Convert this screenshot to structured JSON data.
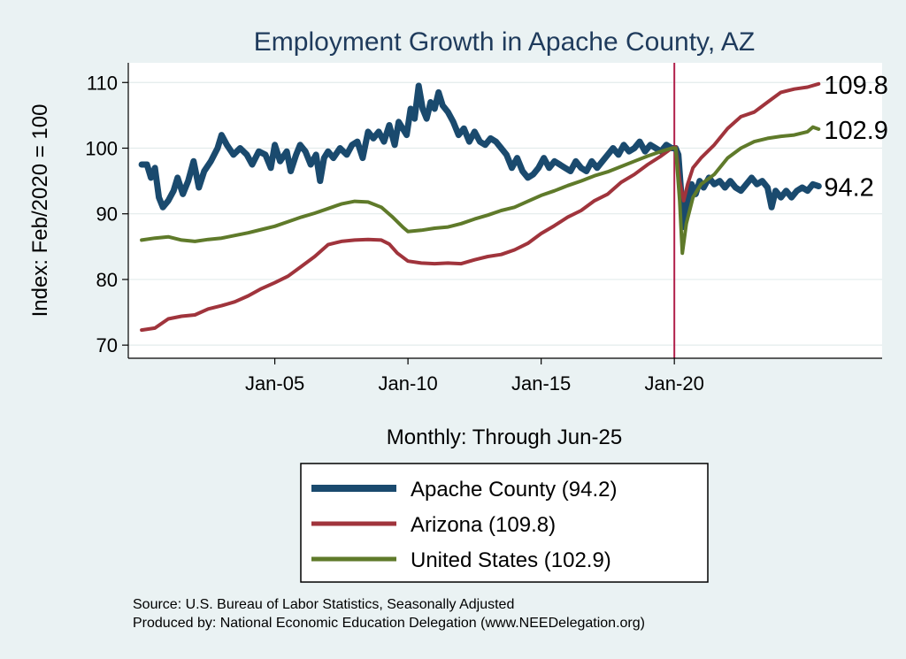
{
  "chart_data": {
    "type": "line",
    "title": "Employment Growth in Apache  County, AZ",
    "ylabel": "Index: Feb/2020 = 100",
    "xlabel": "Monthly: Through Jun-25",
    "ylim": [
      68,
      113
    ],
    "yticks": [
      70,
      80,
      90,
      100,
      110
    ],
    "xticks": [
      {
        "label": "Jan-05",
        "x": 2005.0
      },
      {
        "label": "Jan-10",
        "x": 2010.0
      },
      {
        "label": "Jan-15",
        "x": 2015.0
      },
      {
        "label": "Jan-20",
        "x": 2020.0
      }
    ],
    "xlim": [
      1999.5,
      2027.8
    ],
    "vline": {
      "x": 2020.0,
      "color": "#b0204a"
    },
    "grid": true,
    "series": [
      {
        "name": "Apache  County (94.2)",
        "color": "#1a4a6e",
        "width": 7,
        "end_label": "94.2",
        "points": [
          [
            2000.0,
            97.5
          ],
          [
            2000.2,
            97.5
          ],
          [
            2000.35,
            95.5
          ],
          [
            2000.5,
            97.0
          ],
          [
            2000.65,
            92.5
          ],
          [
            2000.8,
            91.0
          ],
          [
            2001.0,
            92.0
          ],
          [
            2001.2,
            93.5
          ],
          [
            2001.35,
            95.5
          ],
          [
            2001.55,
            93.0
          ],
          [
            2001.75,
            95.0
          ],
          [
            2001.95,
            98.0
          ],
          [
            2002.15,
            94.0
          ],
          [
            2002.35,
            96.5
          ],
          [
            2002.6,
            98.0
          ],
          [
            2002.85,
            100.0
          ],
          [
            2003.0,
            102.0
          ],
          [
            2003.2,
            100.5
          ],
          [
            2003.45,
            99.0
          ],
          [
            2003.7,
            100.0
          ],
          [
            2003.95,
            99.0
          ],
          [
            2004.15,
            97.5
          ],
          [
            2004.4,
            99.5
          ],
          [
            2004.65,
            99.0
          ],
          [
            2004.85,
            97.0
          ],
          [
            2005.0,
            100.5
          ],
          [
            2005.2,
            98.0
          ],
          [
            2005.45,
            99.5
          ],
          [
            2005.6,
            96.5
          ],
          [
            2005.8,
            99.0
          ],
          [
            2005.95,
            100.5
          ],
          [
            2006.15,
            99.5
          ],
          [
            2006.35,
            97.5
          ],
          [
            2006.55,
            99.0
          ],
          [
            2006.7,
            95.0
          ],
          [
            2006.85,
            98.5
          ],
          [
            2007.0,
            99.5
          ],
          [
            2007.2,
            98.5
          ],
          [
            2007.45,
            100.0
          ],
          [
            2007.7,
            99.0
          ],
          [
            2007.9,
            100.5
          ],
          [
            2008.1,
            101.0
          ],
          [
            2008.3,
            98.5
          ],
          [
            2008.5,
            102.5
          ],
          [
            2008.7,
            101.5
          ],
          [
            2008.9,
            102.5
          ],
          [
            2009.1,
            101.0
          ],
          [
            2009.3,
            103.5
          ],
          [
            2009.5,
            100.5
          ],
          [
            2009.65,
            104.0
          ],
          [
            2009.8,
            103.0
          ],
          [
            2009.95,
            102.0
          ],
          [
            2010.1,
            106.0
          ],
          [
            2010.25,
            104.5
          ],
          [
            2010.4,
            109.5
          ],
          [
            2010.55,
            106.0
          ],
          [
            2010.7,
            104.5
          ],
          [
            2010.85,
            107.0
          ],
          [
            2011.0,
            106.0
          ],
          [
            2011.15,
            108.5
          ],
          [
            2011.3,
            106.5
          ],
          [
            2011.5,
            105.5
          ],
          [
            2011.7,
            104.0
          ],
          [
            2011.9,
            102.0
          ],
          [
            2012.1,
            103.0
          ],
          [
            2012.3,
            101.0
          ],
          [
            2012.5,
            102.5
          ],
          [
            2012.7,
            101.0
          ],
          [
            2012.9,
            100.5
          ],
          [
            2013.1,
            101.5
          ],
          [
            2013.3,
            101.0
          ],
          [
            2013.5,
            100.0
          ],
          [
            2013.7,
            99.0
          ],
          [
            2013.9,
            97.0
          ],
          [
            2014.1,
            98.5
          ],
          [
            2014.3,
            96.5
          ],
          [
            2014.5,
            95.5
          ],
          [
            2014.7,
            96.0
          ],
          [
            2014.9,
            97.0
          ],
          [
            2015.1,
            98.5
          ],
          [
            2015.3,
            97.0
          ],
          [
            2015.5,
            98.0
          ],
          [
            2015.7,
            97.5
          ],
          [
            2015.9,
            97.0
          ],
          [
            2016.1,
            96.5
          ],
          [
            2016.3,
            98.0
          ],
          [
            2016.5,
            97.0
          ],
          [
            2016.7,
            96.5
          ],
          [
            2016.9,
            98.0
          ],
          [
            2017.1,
            97.0
          ],
          [
            2017.3,
            98.0
          ],
          [
            2017.5,
            99.0
          ],
          [
            2017.7,
            100.0
          ],
          [
            2017.9,
            99.0
          ],
          [
            2018.1,
            100.5
          ],
          [
            2018.3,
            99.5
          ],
          [
            2018.5,
            100.0
          ],
          [
            2018.7,
            101.0
          ],
          [
            2018.9,
            99.5
          ],
          [
            2019.1,
            100.5
          ],
          [
            2019.3,
            100.0
          ],
          [
            2019.5,
            99.5
          ],
          [
            2019.7,
            100.5
          ],
          [
            2019.9,
            100.0
          ],
          [
            2020.05,
            100.0
          ],
          [
            2020.15,
            99.0
          ],
          [
            2020.25,
            93.5
          ],
          [
            2020.35,
            88.0
          ],
          [
            2020.5,
            91.5
          ],
          [
            2020.65,
            94.5
          ],
          [
            2020.8,
            93.0
          ],
          [
            2020.95,
            95.0
          ],
          [
            2021.1,
            94.0
          ],
          [
            2021.3,
            95.5
          ],
          [
            2021.5,
            94.5
          ],
          [
            2021.7,
            95.0
          ],
          [
            2021.9,
            94.0
          ],
          [
            2022.1,
            95.0
          ],
          [
            2022.3,
            94.0
          ],
          [
            2022.5,
            93.5
          ],
          [
            2022.7,
            94.5
          ],
          [
            2022.9,
            95.5
          ],
          [
            2023.1,
            94.5
          ],
          [
            2023.3,
            95.0
          ],
          [
            2023.5,
            94.0
          ],
          [
            2023.65,
            91.0
          ],
          [
            2023.8,
            93.5
          ],
          [
            2024.0,
            92.5
          ],
          [
            2024.2,
            93.5
          ],
          [
            2024.4,
            92.5
          ],
          [
            2024.6,
            93.5
          ],
          [
            2024.8,
            94.0
          ],
          [
            2025.0,
            93.5
          ],
          [
            2025.2,
            94.5
          ],
          [
            2025.42,
            94.2
          ]
        ]
      },
      {
        "name": "Arizona (109.8)",
        "color": "#a0343c",
        "width": 4,
        "end_label": "109.8",
        "points": [
          [
            2000.0,
            72.3
          ],
          [
            2000.5,
            72.6
          ],
          [
            2001.0,
            74.0
          ],
          [
            2001.5,
            74.4
          ],
          [
            2002.0,
            74.6
          ],
          [
            2002.5,
            75.5
          ],
          [
            2003.0,
            76.0
          ],
          [
            2003.5,
            76.6
          ],
          [
            2004.0,
            77.5
          ],
          [
            2004.5,
            78.6
          ],
          [
            2005.0,
            79.5
          ],
          [
            2005.5,
            80.5
          ],
          [
            2006.0,
            82.0
          ],
          [
            2006.5,
            83.5
          ],
          [
            2007.0,
            85.3
          ],
          [
            2007.5,
            85.8
          ],
          [
            2008.0,
            86.0
          ],
          [
            2008.5,
            86.1
          ],
          [
            2009.0,
            86.0
          ],
          [
            2009.3,
            85.4
          ],
          [
            2009.6,
            84.0
          ],
          [
            2010.0,
            82.8
          ],
          [
            2010.5,
            82.5
          ],
          [
            2011.0,
            82.4
          ],
          [
            2011.5,
            82.5
          ],
          [
            2012.0,
            82.4
          ],
          [
            2012.5,
            83.0
          ],
          [
            2013.0,
            83.5
          ],
          [
            2013.5,
            83.8
          ],
          [
            2014.0,
            84.5
          ],
          [
            2014.5,
            85.5
          ],
          [
            2015.0,
            87.0
          ],
          [
            2015.5,
            88.2
          ],
          [
            2016.0,
            89.5
          ],
          [
            2016.5,
            90.5
          ],
          [
            2017.0,
            92.0
          ],
          [
            2017.5,
            93.0
          ],
          [
            2018.0,
            94.8
          ],
          [
            2018.5,
            96.0
          ],
          [
            2019.0,
            97.5
          ],
          [
            2019.5,
            98.8
          ],
          [
            2019.9,
            100.0
          ],
          [
            2020.05,
            100.2
          ],
          [
            2020.2,
            95.0
          ],
          [
            2020.35,
            92.0
          ],
          [
            2020.5,
            94.5
          ],
          [
            2020.7,
            97.0
          ],
          [
            2021.0,
            98.5
          ],
          [
            2021.5,
            100.5
          ],
          [
            2022.0,
            103.0
          ],
          [
            2022.5,
            104.8
          ],
          [
            2023.0,
            105.5
          ],
          [
            2023.5,
            107.0
          ],
          [
            2024.0,
            108.5
          ],
          [
            2024.5,
            109.0
          ],
          [
            2025.0,
            109.3
          ],
          [
            2025.42,
            109.8
          ]
        ]
      },
      {
        "name": "United States (102.9)",
        "color": "#5f7a2a",
        "width": 4,
        "end_label": "102.9",
        "points": [
          [
            2000.0,
            86.0
          ],
          [
            2000.5,
            86.3
          ],
          [
            2001.0,
            86.5
          ],
          [
            2001.5,
            86.0
          ],
          [
            2002.0,
            85.8
          ],
          [
            2002.5,
            86.1
          ],
          [
            2003.0,
            86.3
          ],
          [
            2003.5,
            86.7
          ],
          [
            2004.0,
            87.1
          ],
          [
            2004.5,
            87.6
          ],
          [
            2005.0,
            88.1
          ],
          [
            2005.5,
            88.8
          ],
          [
            2006.0,
            89.5
          ],
          [
            2006.5,
            90.1
          ],
          [
            2007.0,
            90.8
          ],
          [
            2007.5,
            91.5
          ],
          [
            2008.0,
            91.9
          ],
          [
            2008.5,
            91.8
          ],
          [
            2009.0,
            91.0
          ],
          [
            2009.4,
            89.6
          ],
          [
            2009.8,
            88.0
          ],
          [
            2010.0,
            87.3
          ],
          [
            2010.5,
            87.5
          ],
          [
            2011.0,
            87.8
          ],
          [
            2011.5,
            88.0
          ],
          [
            2012.0,
            88.5
          ],
          [
            2012.5,
            89.2
          ],
          [
            2013.0,
            89.8
          ],
          [
            2013.5,
            90.5
          ],
          [
            2014.0,
            91.0
          ],
          [
            2014.5,
            91.9
          ],
          [
            2015.0,
            92.8
          ],
          [
            2015.5,
            93.5
          ],
          [
            2016.0,
            94.3
          ],
          [
            2016.5,
            95.0
          ],
          [
            2017.0,
            95.8
          ],
          [
            2017.5,
            96.4
          ],
          [
            2018.0,
            97.2
          ],
          [
            2018.5,
            98.0
          ],
          [
            2019.0,
            98.8
          ],
          [
            2019.5,
            99.5
          ],
          [
            2019.9,
            100.0
          ],
          [
            2020.05,
            100.0
          ],
          [
            2020.2,
            92.0
          ],
          [
            2020.3,
            84.0
          ],
          [
            2020.45,
            88.5
          ],
          [
            2020.7,
            92.5
          ],
          [
            2021.0,
            94.5
          ],
          [
            2021.5,
            96.0
          ],
          [
            2022.0,
            98.5
          ],
          [
            2022.5,
            100.0
          ],
          [
            2023.0,
            101.0
          ],
          [
            2023.5,
            101.5
          ],
          [
            2024.0,
            101.8
          ],
          [
            2024.5,
            102.0
          ],
          [
            2025.0,
            102.5
          ],
          [
            2025.2,
            103.2
          ],
          [
            2025.42,
            102.9
          ]
        ]
      }
    ]
  },
  "source_lines": [
    "Source: U.S. Bureau of Labor Statistics, Seasonally Adjusted",
    "Produced by: National Economic Education Delegation (www.NEEDelegation.org)"
  ]
}
